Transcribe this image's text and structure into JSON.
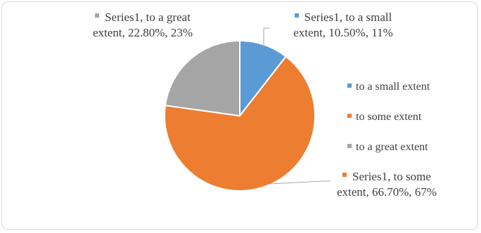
{
  "chart_data": {
    "type": "pie",
    "categories": [
      "to a small extent",
      "to some extent",
      "to a great extent"
    ],
    "series": [
      {
        "name": "Series1",
        "values": [
          10.5,
          66.7,
          22.8
        ]
      }
    ],
    "colors": [
      "#5b9bd5",
      "#ed7d31",
      "#a5a5a5"
    ],
    "data_labels": [
      "Series1, to a small extent, 10.50%, 11%",
      "Series1, to some extent, 66.70%, 67%",
      "Series1, to a great extent, 22.80%, 23%"
    ],
    "legend": "right"
  }
}
